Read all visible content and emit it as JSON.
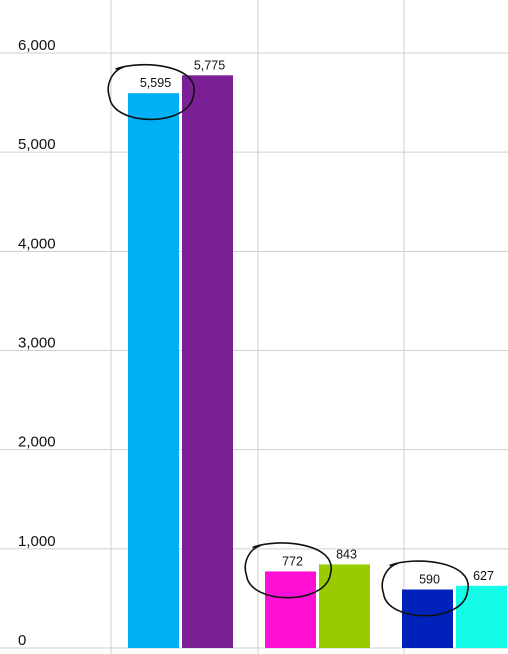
{
  "chart_data": {
    "type": "bar",
    "title": "",
    "xlabel": "",
    "ylabel": "",
    "ylim": [
      0,
      6000
    ],
    "yticks": [
      0,
      1000,
      2000,
      3000,
      4000,
      5000,
      6000
    ],
    "ytick_labels": [
      "0",
      "1,000",
      "2,000",
      "3,000",
      "4,000",
      "5,000",
      "6,000"
    ],
    "grid": true,
    "groups": [
      {
        "bars": [
          {
            "value": 5595,
            "label": "5,595",
            "color": "#00b0f6",
            "circled": true
          },
          {
            "value": 5775,
            "label": "5,775",
            "color": "#7b1f94",
            "circled": false
          }
        ]
      },
      {
        "bars": [
          {
            "value": 772,
            "label": "772",
            "color": "#ff10d4",
            "circled": true
          },
          {
            "value": 843,
            "label": "843",
            "color": "#99cc00",
            "circled": false
          }
        ]
      },
      {
        "bars": [
          {
            "value": 590,
            "label": "590",
            "color": "#0022bb",
            "circled": true
          },
          {
            "value": 627,
            "label": "627",
            "color": "#14fce8",
            "circled": false
          }
        ]
      }
    ]
  }
}
